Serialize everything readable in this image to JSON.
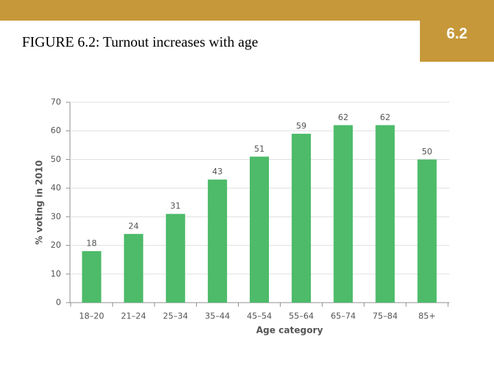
{
  "slide_number": "6.2",
  "title": "FIGURE 6.2: Turnout increases with age",
  "chart_data": {
    "type": "bar",
    "x_label": "Age category",
    "y_label": "% voting in 2010",
    "categories": [
      "18–20",
      "21–24",
      "25–34",
      "35–44",
      "45–54",
      "55–64",
      "65–74",
      "75–84",
      "85+"
    ],
    "values": [
      18,
      24,
      31,
      43,
      51,
      59,
      62,
      62,
      50
    ],
    "color": "#4dbb6a",
    "ylim": [
      0,
      70
    ],
    "yticks": [
      0,
      10,
      20,
      30,
      40,
      50,
      60,
      70
    ],
    "grid": true
  }
}
